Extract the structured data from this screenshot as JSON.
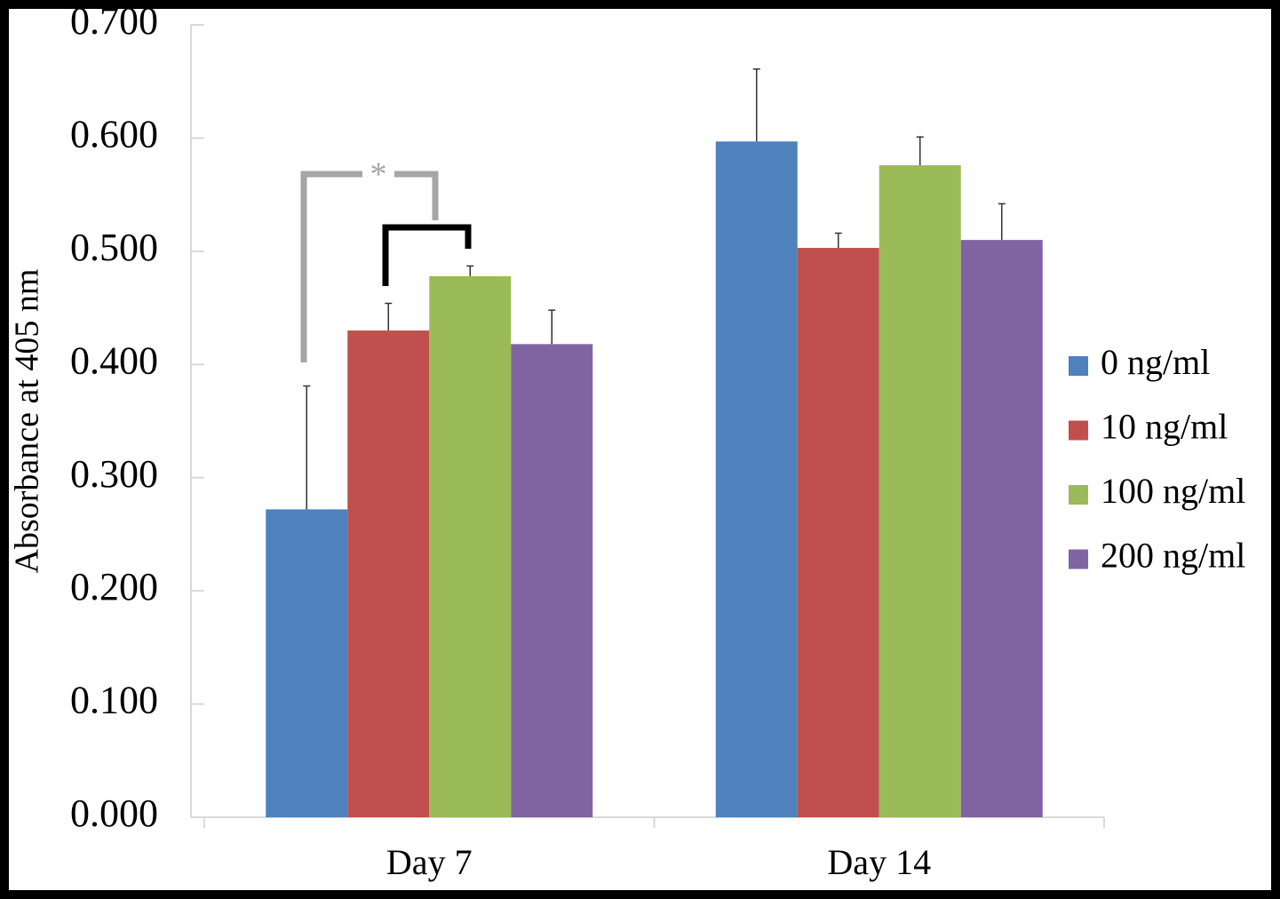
{
  "chart_data": {
    "type": "bar",
    "y_label": "Absorbance at 405 nm",
    "categories": [
      "Day 7",
      "Day 14"
    ],
    "series": [
      {
        "name": "0 ng/ml",
        "color": "#4f81bd",
        "values": [
          0.272,
          0.597
        ],
        "errors": [
          0.109,
          0.064
        ]
      },
      {
        "name": "10 ng/ml",
        "color": "#c0504d",
        "values": [
          0.43,
          0.503
        ],
        "errors": [
          0.024,
          0.013
        ]
      },
      {
        "name": "100 ng/ml",
        "color": "#9bbb59",
        "values": [
          0.478,
          0.576
        ],
        "errors": [
          0.009,
          0.025
        ]
      },
      {
        "name": "200 ng/ml",
        "color": "#8064a2",
        "values": [
          0.418,
          0.51
        ],
        "errors": [
          0.03,
          0.032
        ]
      }
    ],
    "ylim": [
      0,
      0.7
    ],
    "yticks": [
      {
        "value": 0,
        "label": "0.000"
      },
      {
        "value": 0.1,
        "label": "0.100"
      },
      {
        "value": 0.2,
        "label": "0.200"
      },
      {
        "value": 0.3,
        "label": "0.300"
      },
      {
        "value": 0.4,
        "label": "0.400"
      },
      {
        "value": 0.5,
        "label": "0.500"
      },
      {
        "value": 0.6,
        "label": "0.600"
      },
      {
        "value": 0.7,
        "label": "0.700"
      }
    ],
    "annotation": "*",
    "legend": "right"
  }
}
